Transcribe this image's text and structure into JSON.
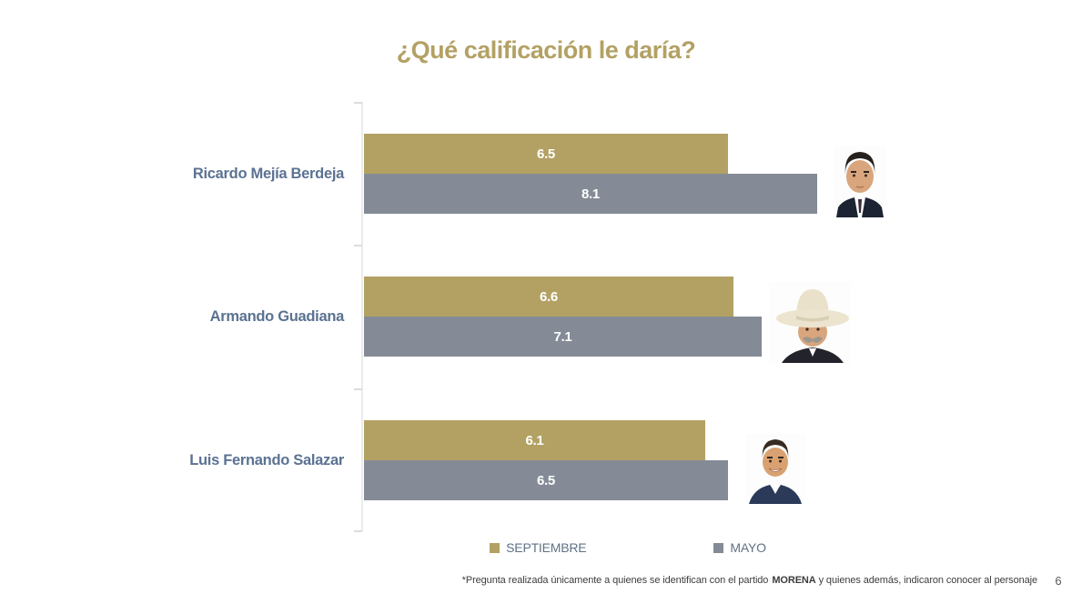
{
  "slide": {
    "title": "¿Qué calificación le daría?",
    "page_number": "6",
    "footnote": {
      "prefix": "*Pregunta realizada únicamente a quienes se identifican con el partido",
      "highlight": "MORENA",
      "suffix": " y quienes además, indicaron conocer al personaje"
    }
  },
  "chart_data": {
    "type": "bar",
    "orientation": "horizontal",
    "title": "¿Qué calificación le daría?",
    "categories": [
      "Ricardo Mejía Berdeja",
      "Armando Guadiana",
      "Luis Fernando Salazar"
    ],
    "series": [
      {
        "name": "SEPTIEMBRE",
        "color": "#b3a164",
        "values": [
          6.5,
          6.6,
          6.1
        ]
      },
      {
        "name": "MAYO",
        "color": "#848b96",
        "values": [
          8.1,
          7.1,
          6.5
        ]
      }
    ],
    "xlim": [
      0,
      10
    ],
    "grid": false,
    "value_labels": "inside-center",
    "legend_position": "bottom",
    "annotations": [
      "photo of Ricardo Mejía Berdeja at end of his bars",
      "photo of Armando Guadiana (cream cowboy hat) at end of his bars",
      "photo of Luis Fernando Salazar at end of his bars"
    ]
  },
  "colors": {
    "title": "#b3a164",
    "septiembre_bar": "#b3a164",
    "mayo_bar": "#848b96",
    "category_label": "#5b7292",
    "legend_text": "#5f7285",
    "axis_line": "#ececec"
  }
}
